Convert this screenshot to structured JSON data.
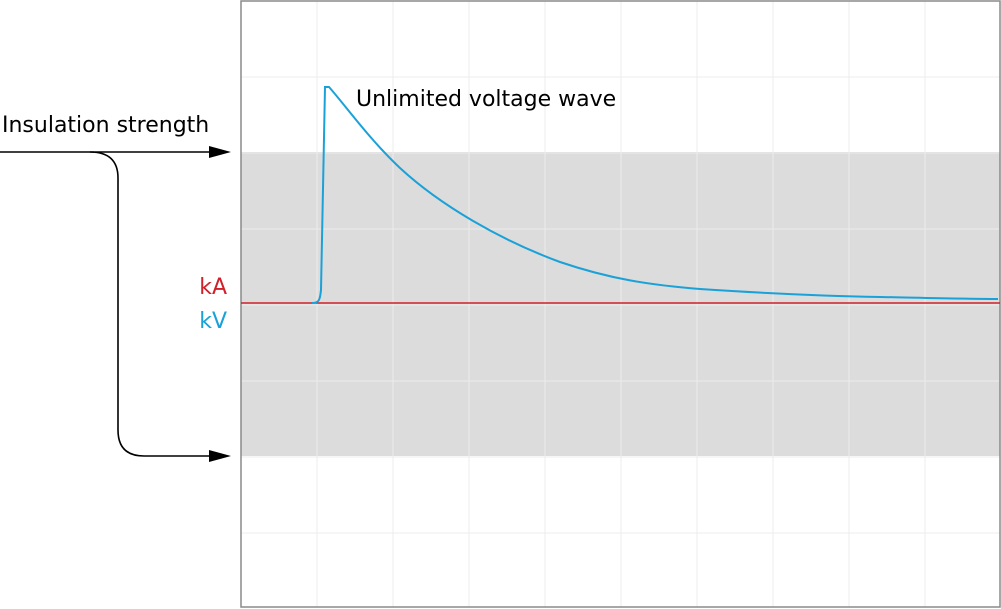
{
  "labels": {
    "insulation": "Insulation strength",
    "wave": "Unlimited voltage wave",
    "current_unit": "kA",
    "voltage_unit": "kV"
  },
  "colors": {
    "current": "#d0202a",
    "voltage": "#1aa1d8",
    "band": "#dcdcdc",
    "grid": "#ececec",
    "frame": "#8a8a8a",
    "arrow": "#000000"
  }
}
